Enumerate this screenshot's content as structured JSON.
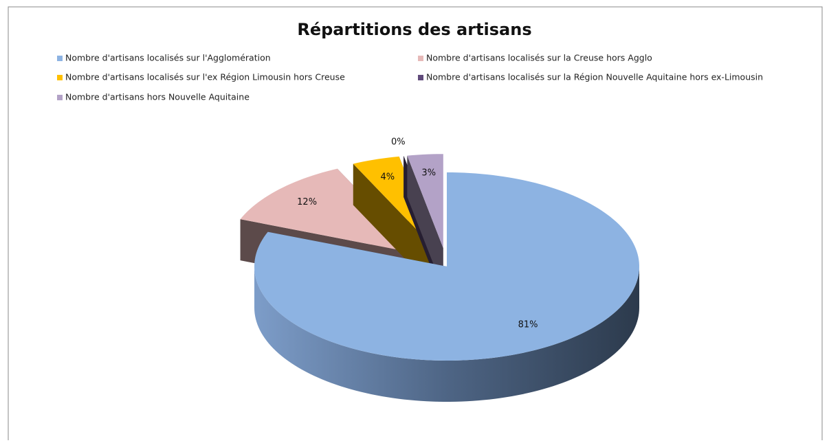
{
  "chart_data": {
    "type": "pie",
    "title": "Répartitions des artisans",
    "categories": [
      "Nombre d'artisans localisés sur l'Agglomération",
      "Nombre d'artisans localisés sur la Creuse hors Agglo",
      "Nombre d'artisans localisés sur l'ex Région Limousin hors Creuse",
      "Nombre d'artisans localisés sur la Région Nouvelle Aquitaine hors ex-Limousin",
      "Nombre d'artisans hors Nouvelle Aquitaine"
    ],
    "values": [
      81,
      12,
      4,
      0,
      3
    ],
    "value_labels": [
      "81%",
      "12%",
      "4%",
      "0%",
      "3%"
    ],
    "colors": [
      "#8db3e2",
      "#e6b9b8",
      "#ffc000",
      "#604a7b",
      "#b3a2c7"
    ],
    "legend": "top"
  }
}
